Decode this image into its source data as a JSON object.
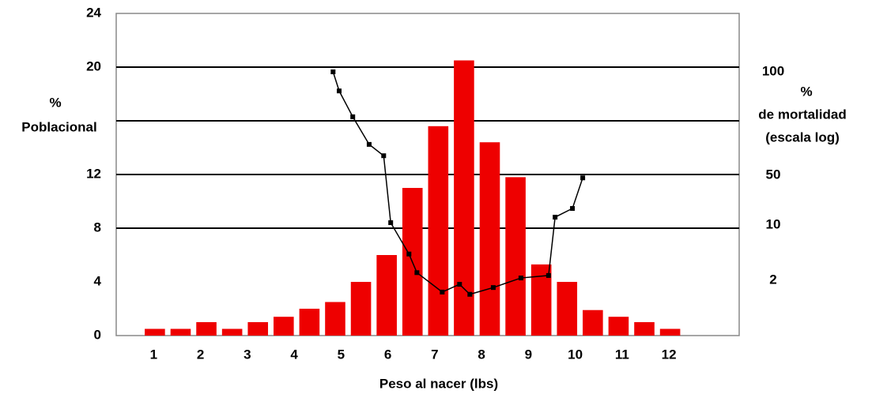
{
  "chart_data": {
    "type": "histogram",
    "x_label": "Peso al nacer (lbs)",
    "y_label": [
      "%",
      "Poblacional"
    ],
    "y2_label": [
      "%",
      "de mortalidad",
      "(escala log)"
    ],
    "bins": [
      0.75,
      1.3,
      1.85,
      2.4,
      2.95,
      3.5,
      4.05,
      4.6,
      5.15,
      5.7,
      6.25,
      6.8,
      7.35,
      7.9,
      8.45,
      9,
      9.55,
      10.1,
      10.65,
      11.2,
      11.75,
      12.3
    ],
    "values": [
      0.5,
      0.5,
      1,
      0.5,
      1,
      1.4,
      2,
      2.5,
      4,
      6,
      11,
      15.6,
      20.5,
      14.4,
      11.8,
      5.3,
      4,
      1.9,
      1.4,
      1,
      0.5
    ],
    "color": "#ee0000",
    "line": {
      "type": "line",
      "axis": "y2",
      "color": "#000000",
      "x": [
        4.83,
        4.96,
        5.25,
        5.6,
        5.91,
        6.06,
        6.45,
        6.62,
        7.16,
        7.53,
        7.75,
        8.25,
        8.84,
        9.43,
        9.57,
        9.94,
        10.16
      ],
      "values": [
        100,
        88,
        74,
        61.5,
        57,
        10.8,
        4.3,
        2.5,
        1.42,
        1.78,
        1.33,
        1.62,
        2.14,
        2.3,
        12.9,
        17.1,
        46
      ]
    },
    "xlim": [
      0.2,
      13.5
    ],
    "xticks": [
      1,
      2,
      3,
      4,
      5,
      6,
      7,
      8,
      9,
      10,
      11,
      12
    ],
    "ylim": [
      0,
      24
    ],
    "yticks": [
      0,
      4,
      8,
      12,
      20,
      24
    ],
    "grid_lines": [
      8,
      12,
      16,
      20
    ],
    "y2_scale": "log",
    "y2ticks": [
      2,
      10,
      50,
      100
    ]
  }
}
